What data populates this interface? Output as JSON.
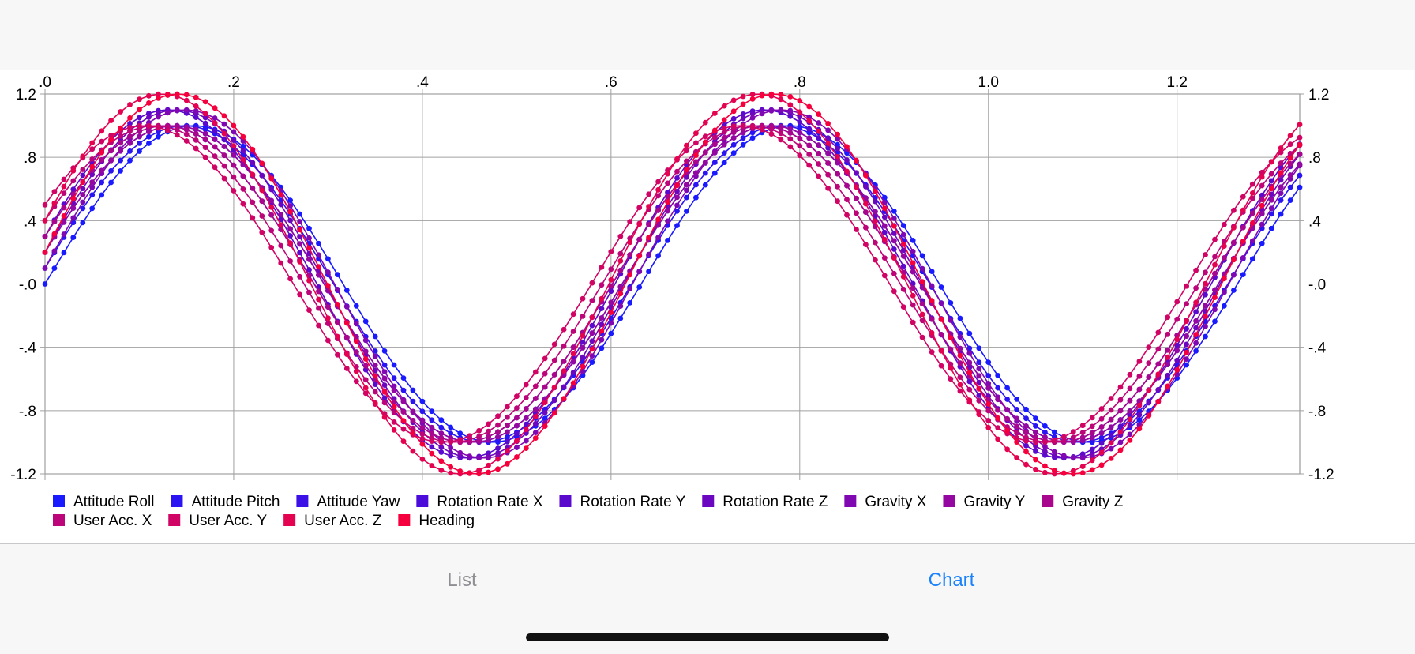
{
  "tabs": {
    "list_label": "List",
    "chart_label": "Chart",
    "active": "Chart"
  },
  "chart_data": {
    "type": "line",
    "title": "",
    "xlabel": "",
    "ylabel": "",
    "xlim": [
      0,
      1.33
    ],
    "ylim": [
      -1.2,
      1.2
    ],
    "x_ticks": [
      ".0",
      ".2",
      ".4",
      ".6",
      ".8",
      "1.0",
      "1.2"
    ],
    "x_tick_values": [
      0,
      0.2,
      0.4,
      0.6,
      0.8,
      1.0,
      1.2
    ],
    "y_ticks": [
      "1.2",
      ".8",
      ".4",
      "-.0",
      "-.4",
      "-.8",
      "-1.2"
    ],
    "y_tick_values": [
      1.2,
      0.8,
      0.4,
      0,
      -0.4,
      -0.8,
      -1.2
    ],
    "grid": true,
    "markers": "dots",
    "legend_position": "bottom",
    "x_axis_position": "top",
    "y_axes": "left and right",
    "x_step": 0.01,
    "series": [
      {
        "name": "Attitude Roll",
        "color": "#1a1aff",
        "amplitude": 1.0,
        "offset": 0.0,
        "period": 0.632,
        "phase": 0.0
      },
      {
        "name": "Attitude Pitch",
        "color": "#2a14f2",
        "amplitude": 1.0,
        "offset": 0.1,
        "period": 0.632,
        "phase": 0.1
      },
      {
        "name": "Attitude Yaw",
        "color": "#3a10e6",
        "amplitude": 1.0,
        "offset": 0.2,
        "period": 0.632,
        "phase": 0.2
      },
      {
        "name": "Rotation Rate X",
        "color": "#4a0cd9",
        "amplitude": 1.0,
        "offset": 0.3,
        "period": 0.632,
        "phase": 0.3
      },
      {
        "name": "Rotation Rate Y",
        "color": "#5a0acc",
        "amplitude": 1.1,
        "offset": 0.3,
        "period": 0.632,
        "phase": 0.3
      },
      {
        "name": "Rotation Rate Z",
        "color": "#6b08bf",
        "amplitude": 1.1,
        "offset": 0.2,
        "period": 0.632,
        "phase": 0.2
      },
      {
        "name": "Gravity X",
        "color": "#8008b3",
        "amplitude": 1.1,
        "offset": 0.1,
        "period": 0.632,
        "phase": 0.1
      },
      {
        "name": "Gravity Y",
        "color": "#9407a0",
        "amplitude": 1.0,
        "offset": 0.2,
        "period": 0.632,
        "phase": 0.2
      },
      {
        "name": "Gravity Z",
        "color": "#a8068c",
        "amplitude": 1.0,
        "offset": 0.3,
        "period": 0.632,
        "phase": 0.3
      },
      {
        "name": "User Acc. X",
        "color": "#bc0578",
        "amplitude": 1.0,
        "offset": 0.4,
        "period": 0.632,
        "phase": 0.4
      },
      {
        "name": "User Acc. Y",
        "color": "#d00464",
        "amplitude": 1.0,
        "offset": 0.5,
        "period": 0.632,
        "phase": 0.5
      },
      {
        "name": "User Acc. Z",
        "color": "#e40350",
        "amplitude": 1.2,
        "offset": 0.4,
        "period": 0.632,
        "phase": 0.4
      },
      {
        "name": "Heading",
        "color": "#f5003c",
        "amplitude": 1.2,
        "offset": 0.2,
        "period": 0.632,
        "phase": 0.5
      }
    ]
  }
}
